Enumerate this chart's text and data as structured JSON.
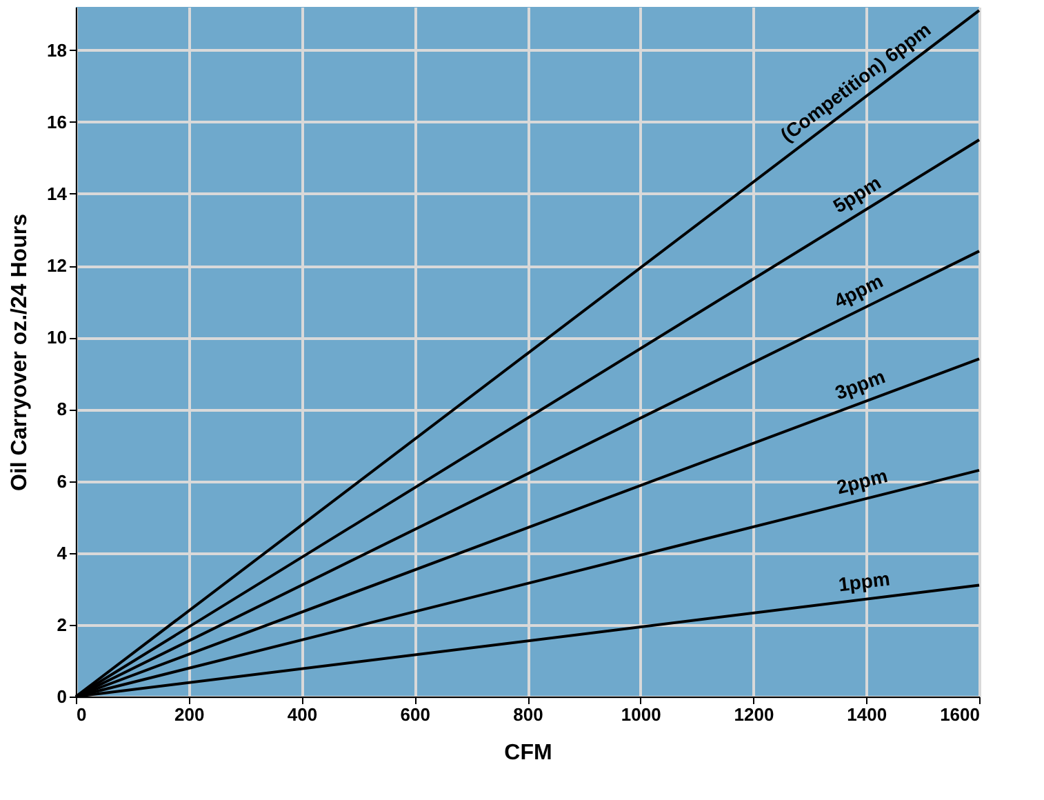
{
  "chart_data": {
    "type": "line",
    "xlabel": "CFM",
    "ylabel": "Oil Carryover oz./24 Hours",
    "xlim": [
      0,
      1600
    ],
    "ylim": [
      0,
      19.2
    ],
    "xticks": [
      0,
      200,
      400,
      600,
      800,
      1000,
      1200,
      1400,
      1600
    ],
    "yticks": [
      0,
      2,
      4,
      6,
      8,
      10,
      12,
      14,
      16,
      18
    ],
    "x": [
      0,
      1600
    ],
    "grid": true,
    "legend": false,
    "marker": "none",
    "line_style": "solid",
    "series": [
      {
        "name": "(Competition) 6ppm",
        "color": "#000000",
        "values": [
          0,
          19.1
        ]
      },
      {
        "name": "5ppm",
        "color": "#000000",
        "values": [
          0,
          15.5
        ]
      },
      {
        "name": "4ppm",
        "color": "#000000",
        "values": [
          0,
          12.4
        ]
      },
      {
        "name": "3ppm",
        "color": "#000000",
        "values": [
          0,
          9.4
        ]
      },
      {
        "name": "2ppm",
        "color": "#000000",
        "values": [
          0,
          6.3
        ]
      },
      {
        "name": "1ppm",
        "color": "#000000",
        "values": [
          0,
          3.1
        ]
      }
    ]
  }
}
